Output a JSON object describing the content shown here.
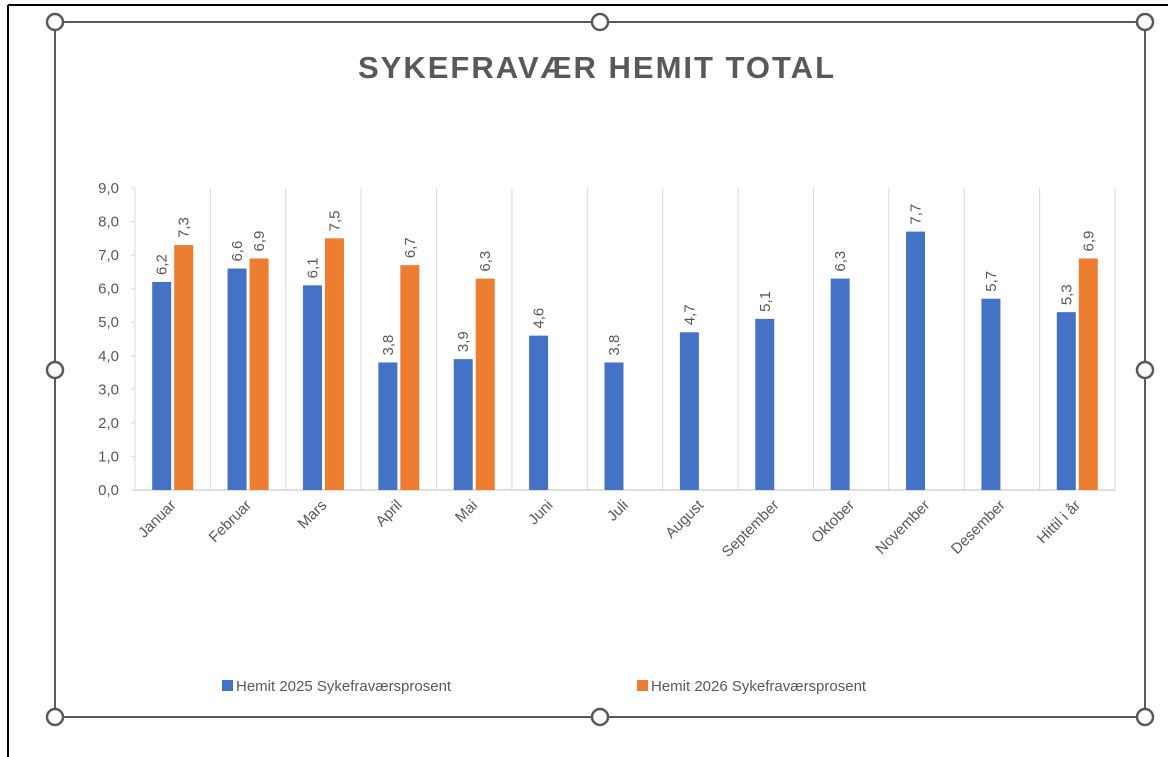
{
  "chart_data": {
    "type": "bar",
    "title": "SYKEFRAVÆR HEMIT TOTAL",
    "categories": [
      "Januar",
      "Februar",
      "Mars",
      "April",
      "Mai",
      "Juni",
      "Juli",
      "August",
      "September",
      "Oktober",
      "November",
      "Desember",
      "Hittil i år"
    ],
    "series": [
      {
        "name": "Hemit 2025 Sykefraværsprosent",
        "color": "#4472c4",
        "values": [
          6.2,
          6.6,
          6.1,
          3.8,
          3.9,
          4.6,
          3.8,
          4.7,
          5.1,
          6.3,
          7.7,
          5.7,
          5.3
        ],
        "value_labels": [
          "6,2",
          "6,6",
          "6,1",
          "3,8",
          "3,9",
          "4,6",
          "3,8",
          "4,7",
          "5,1",
          "6,3",
          "7,7",
          "5,7",
          "5,3"
        ]
      },
      {
        "name": "Hemit 2026 Sykefraværsprosent",
        "color": "#ed7d31",
        "values": [
          7.3,
          6.9,
          7.5,
          6.7,
          6.3,
          null,
          null,
          null,
          null,
          null,
          null,
          null,
          6.9
        ],
        "value_labels": [
          "7,3",
          "6,9",
          "7,5",
          "6,7",
          "6,3",
          null,
          null,
          null,
          null,
          null,
          null,
          null,
          "6,9"
        ]
      }
    ],
    "ylim": [
      0,
      9
    ],
    "yticks": [
      {
        "value": 0,
        "label": "0,0"
      },
      {
        "value": 1,
        "label": "1,0"
      },
      {
        "value": 2,
        "label": "2,0"
      },
      {
        "value": 3,
        "label": "3,0"
      },
      {
        "value": 4,
        "label": "4,0"
      },
      {
        "value": 5,
        "label": "5,0"
      },
      {
        "value": 6,
        "label": "6,0"
      },
      {
        "value": 7,
        "label": "7,0"
      },
      {
        "value": 8,
        "label": "8,0"
      },
      {
        "value": 9,
        "label": "9,0"
      }
    ],
    "legend": "bottom"
  }
}
